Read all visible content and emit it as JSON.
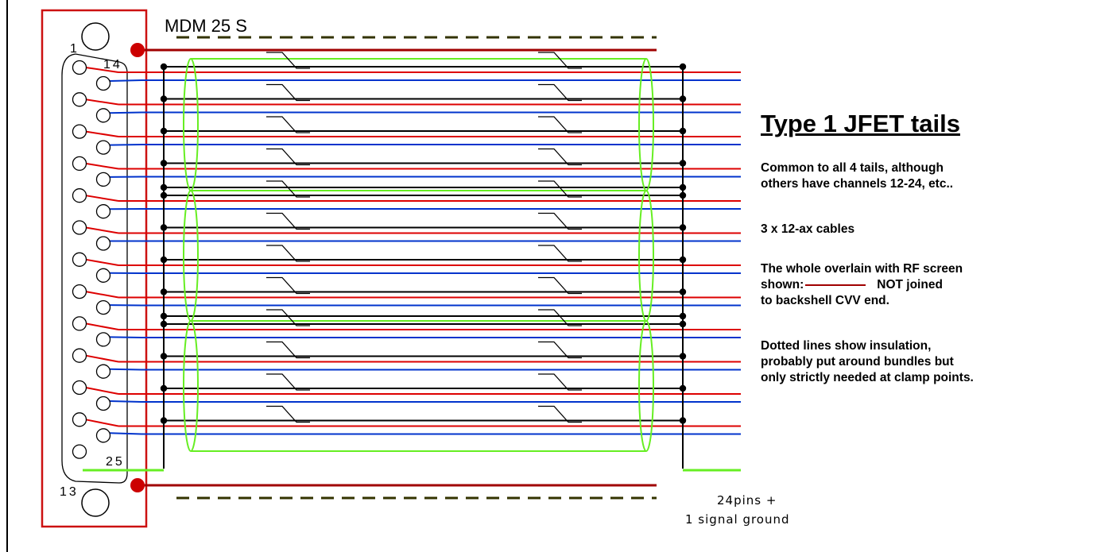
{
  "connector": {
    "name": "MDM 25 S",
    "pin_labels": {
      "first": "1",
      "row2_first": "14",
      "row2_last": "25",
      "row1_last": "13"
    },
    "row1_pins": 13,
    "row2_pins": 12
  },
  "tails": {
    "bundles": 3,
    "pairs_per_bundle": 4
  },
  "notes": {
    "title": "Type 1 JFET tails",
    "common": [
      "Common to all 4 tails, although",
      "others have channels 12-24, etc.."
    ],
    "cables": "3 x 12-ax cables",
    "screen": [
      "The whole overlain with RF screen",
      "shown:",
      "NOT joined",
      "to backshell CVV end."
    ],
    "insulation": [
      "Dotted lines show insulation,",
      "probably put around bundles but",
      "only strictly needed at clamp points."
    ]
  },
  "pin_summary": {
    "line1": "24pins +",
    "line2": "1 signal ground"
  },
  "colors": {
    "shell": "#cc1111",
    "screen": "#a00000",
    "signal_red": "#dd0000",
    "signal_blue": "#0033cc",
    "ground": "#000000",
    "cable_jacket": "#66ee22",
    "insulation": "#333300"
  },
  "icons": [
    "connector-pin-icon",
    "screen-clamp-dot-icon",
    "cable-break-icon"
  ]
}
